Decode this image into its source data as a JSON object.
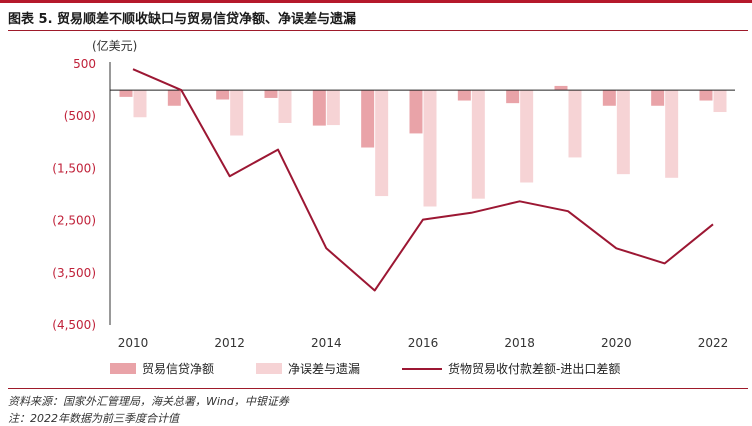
{
  "title": "图表 5. 贸易顺差不顺收缺口与贸易信贷净额、净误差与遗漏",
  "source": "资料来源：国家外汇管理局，海关总署，Wind，中银证券",
  "note": "注：2022年数据为前三季度合计值",
  "chart_data": {
    "type": "bar+line",
    "unit_label": "(亿美元)",
    "x": [
      2010,
      2011,
      2012,
      2013,
      2014,
      2015,
      2016,
      2017,
      2018,
      2019,
      2020,
      2021,
      2022
    ],
    "x_tick_labels": [
      "2010",
      "2012",
      "2014",
      "2016",
      "2018",
      "2020",
      "2022"
    ],
    "ylim": [
      -4500,
      500
    ],
    "y_ticks": [
      500,
      -500,
      -1500,
      -2500,
      -3500,
      -4500
    ],
    "y_tick_labels": [
      "500",
      "(500)",
      "(1,500)",
      "(2,500)",
      "(3,500)",
      "(4,500)"
    ],
    "series": [
      {
        "name": "贸易信贷净额",
        "kind": "bar",
        "color": "#e9a3a8",
        "values": [
          -130,
          -300,
          -180,
          -150,
          -680,
          -1100,
          -830,
          -200,
          -250,
          80,
          -300,
          -300,
          -200
        ]
      },
      {
        "name": "净误差与遗漏",
        "kind": "bar",
        "color": "#f6d3d5",
        "values": [
          -520,
          0,
          -870,
          -630,
          -670,
          -2030,
          -2230,
          -2080,
          -1770,
          -1290,
          -1610,
          -1680,
          -420
        ]
      },
      {
        "name": "货物贸易收付款差额-进出口差额",
        "kind": "line",
        "color": "#9c1733",
        "values": [
          400,
          0,
          -1650,
          -1140,
          -3030,
          -3840,
          -2480,
          -2350,
          -2130,
          -2320,
          -3030,
          -3320,
          -2570
        ]
      }
    ],
    "legend_position": "bottom",
    "grid": false
  }
}
